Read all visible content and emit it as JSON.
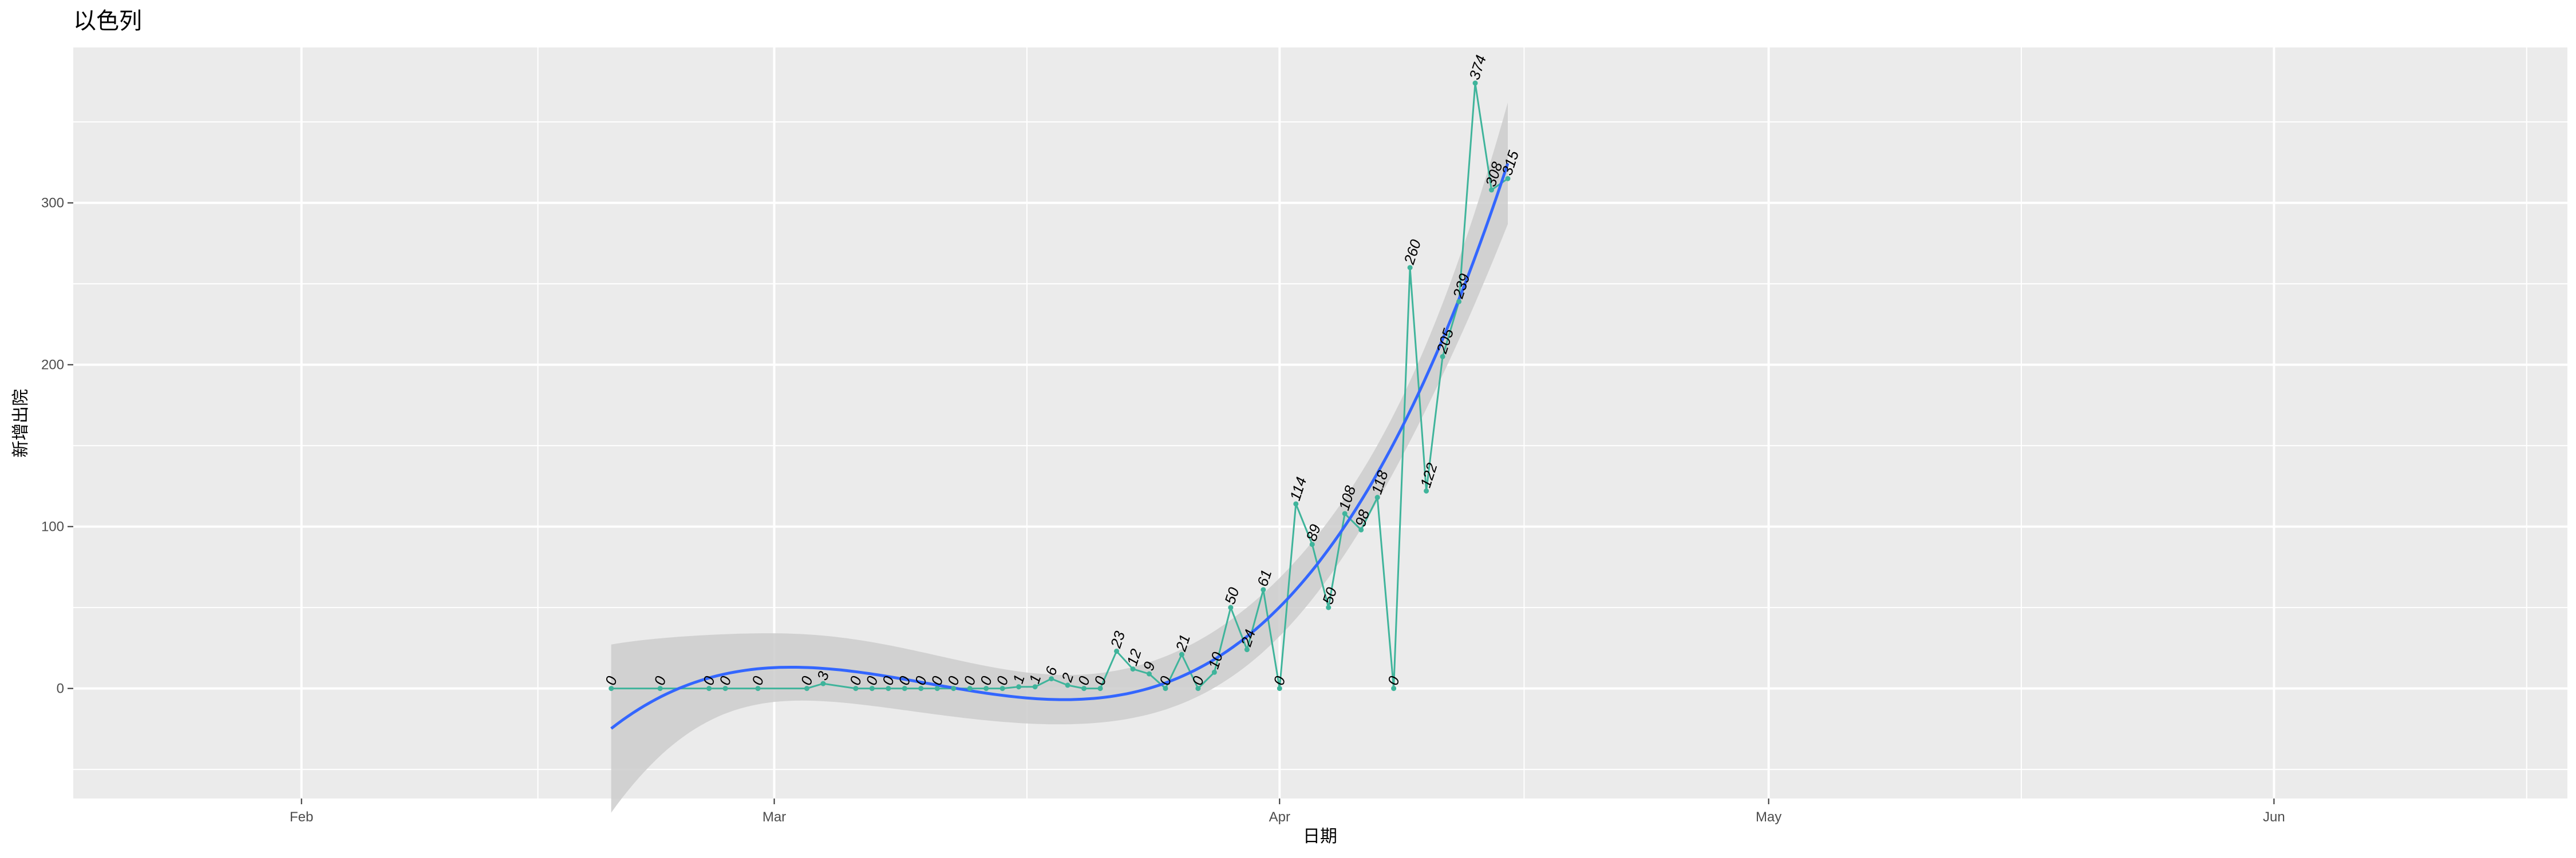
{
  "chart_data": {
    "type": "line",
    "title": "以色列",
    "xlabel": "日期",
    "ylabel": "新增出院",
    "x_tick_labels": [
      "Feb",
      "Mar",
      "Apr",
      "May",
      "Jun"
    ],
    "x_tick_dates": [
      "2020-02-01",
      "2020-03-01",
      "2020-04-01",
      "2020-05-01",
      "2020-06-01"
    ],
    "y_tick_labels": [
      "0",
      "100",
      "200",
      "300"
    ],
    "y_ticks": [
      0,
      100,
      200,
      300
    ],
    "xlim": [
      "2020-01-18",
      "2020-06-19"
    ],
    "ylim": [
      -68,
      396
    ],
    "grid": true,
    "line_color": "#3fb49b",
    "smooth_color": "#3366ff",
    "ribbon_color": "#cccccc",
    "panel_color": "#ebebeb",
    "series": [
      {
        "x": [
          "2020-02-20",
          "2020-02-23",
          "2020-02-26",
          "2020-02-27",
          "2020-02-29",
          "2020-03-03",
          "2020-03-04",
          "2020-03-06",
          "2020-03-07",
          "2020-03-08",
          "2020-03-09",
          "2020-03-10",
          "2020-03-11",
          "2020-03-12",
          "2020-03-13",
          "2020-03-14",
          "2020-03-15",
          "2020-03-16",
          "2020-03-17",
          "2020-03-18",
          "2020-03-19",
          "2020-03-20",
          "2020-03-21",
          "2020-03-22",
          "2020-03-23",
          "2020-03-24",
          "2020-03-25",
          "2020-03-26",
          "2020-03-27",
          "2020-03-28",
          "2020-03-29",
          "2020-03-30",
          "2020-03-31",
          "2020-04-01",
          "2020-04-02",
          "2020-04-03",
          "2020-04-04",
          "2020-04-05",
          "2020-04-06",
          "2020-04-07",
          "2020-04-08",
          "2020-04-09",
          "2020-04-10",
          "2020-04-11",
          "2020-04-12",
          "2020-04-13",
          "2020-04-14",
          "2020-04-15",
          "2020-04-16"
        ],
        "values": [
          0,
          0,
          0,
          0,
          0,
          0,
          3,
          0,
          0,
          0,
          0,
          0,
          0,
          0,
          0,
          0,
          0,
          1,
          1,
          6,
          2,
          0,
          0,
          23,
          12,
          9,
          0,
          21,
          0,
          10,
          50,
          24,
          61,
          0,
          114,
          89,
          50,
          108,
          98,
          118,
          0,
          260,
          122,
          205,
          239,
          374,
          308,
          315,
          null
        ]
      }
    ],
    "data_labels": [
      "0",
      "0",
      "0",
      "0",
      "0",
      "0",
      "3",
      "0",
      "0",
      "0",
      "0",
      "0",
      "0",
      "0",
      "0",
      "0",
      "0",
      "1",
      "1",
      "6",
      "2",
      "0",
      "0",
      "23",
      "12",
      "9",
      "0",
      "21",
      "0",
      "10",
      "50",
      "24",
      "61",
      "0",
      "114",
      "89",
      "50",
      "108",
      "98",
      "118",
      "0",
      "260",
      "122",
      "205",
      "239",
      "374",
      "308",
      "315"
    ]
  }
}
